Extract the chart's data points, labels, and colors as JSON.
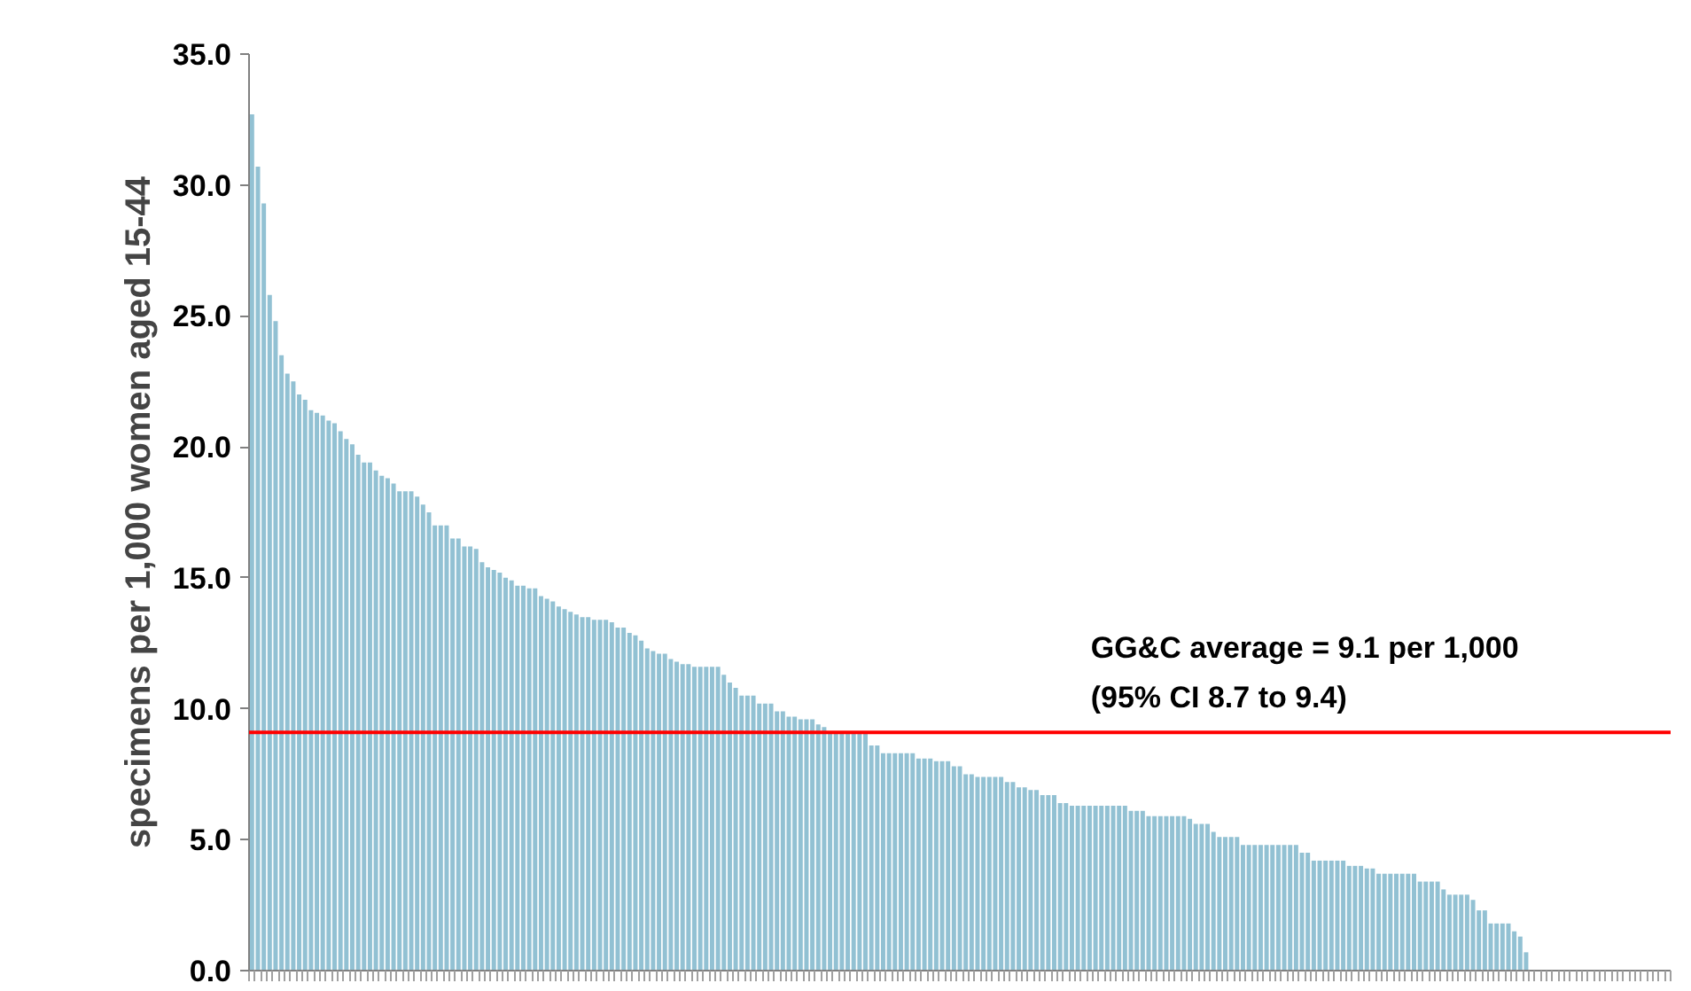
{
  "chart_data": {
    "type": "bar",
    "ylabel": "specimens per 1,000 women aged 15-44",
    "categories": [
      null,
      null,
      null,
      null,
      null,
      null,
      null,
      null,
      null,
      null,
      null,
      null,
      null,
      null,
      null,
      null,
      null,
      null,
      null,
      null,
      null,
      null,
      null,
      null,
      null,
      null,
      null,
      null,
      null,
      null,
      null,
      null,
      null,
      null,
      null,
      null,
      null,
      null,
      null,
      null,
      null,
      null,
      null,
      null,
      null,
      null,
      null,
      null,
      null,
      null,
      null,
      null,
      null,
      null,
      null,
      null,
      null,
      null,
      null,
      null,
      null,
      null,
      null,
      null,
      null,
      null,
      null,
      null,
      null,
      null,
      null,
      null,
      null,
      null,
      null,
      null,
      null,
      null,
      null,
      null,
      null,
      null,
      null,
      null,
      null,
      null,
      null,
      null,
      null,
      null,
      null,
      null,
      null,
      null,
      null,
      null,
      null,
      null,
      null,
      null,
      null,
      null,
      null,
      null,
      null,
      null,
      null,
      null,
      null,
      null,
      null,
      null,
      null,
      null,
      null,
      null,
      null,
      null,
      null,
      null,
      null,
      null,
      null,
      null,
      null,
      null,
      null,
      null,
      null,
      null,
      null,
      null,
      null,
      null,
      null,
      null,
      null,
      null,
      null,
      null,
      null,
      null,
      null,
      null,
      null,
      null,
      null,
      null,
      null,
      null,
      null,
      null,
      null,
      null,
      null,
      null,
      null,
      null,
      null,
      null,
      null,
      null,
      null,
      null,
      null,
      null,
      null,
      null,
      null,
      null,
      null,
      null,
      null,
      null,
      null,
      null,
      null,
      null,
      null,
      null,
      null,
      null,
      null,
      null,
      null,
      null,
      null,
      null,
      null,
      null,
      null,
      null,
      null,
      null,
      null,
      null,
      null,
      null,
      null,
      null,
      null,
      null,
      null,
      null,
      null,
      null,
      null,
      null,
      null,
      null,
      null,
      null,
      null,
      null,
      null,
      null,
      null,
      null,
      null,
      null,
      null,
      null,
      null,
      null,
      null,
      null,
      null,
      null,
      null,
      null,
      null,
      null,
      null,
      null,
      null,
      null,
      null,
      null,
      null,
      null,
      null
    ],
    "values": [
      32.7,
      30.7,
      29.3,
      25.8,
      24.8,
      23.5,
      22.8,
      22.5,
      22.0,
      21.8,
      21.4,
      21.3,
      21.2,
      21.0,
      20.9,
      20.6,
      20.3,
      20.1,
      19.7,
      19.4,
      19.4,
      19.1,
      18.9,
      18.8,
      18.6,
      18.3,
      18.3,
      18.3,
      18.1,
      17.8,
      17.5,
      17.0,
      17.0,
      17.0,
      16.5,
      16.5,
      16.2,
      16.2,
      16.1,
      15.6,
      15.4,
      15.3,
      15.2,
      15.0,
      14.9,
      14.7,
      14.7,
      14.6,
      14.6,
      14.3,
      14.2,
      14.1,
      13.9,
      13.8,
      13.7,
      13.6,
      13.5,
      13.5,
      13.4,
      13.4,
      13.4,
      13.3,
      13.1,
      13.1,
      12.9,
      12.8,
      12.6,
      12.3,
      12.2,
      12.1,
      12.1,
      11.9,
      11.8,
      11.7,
      11.7,
      11.6,
      11.6,
      11.6,
      11.6,
      11.6,
      11.3,
      11.0,
      10.8,
      10.5,
      10.5,
      10.5,
      10.2,
      10.2,
      10.2,
      9.9,
      9.9,
      9.7,
      9.7,
      9.6,
      9.6,
      9.6,
      9.4,
      9.3,
      9.1,
      9.1,
      9.1,
      9.1,
      9.1,
      9.1,
      9.1,
      8.6,
      8.6,
      8.3,
      8.3,
      8.3,
      8.3,
      8.3,
      8.3,
      8.1,
      8.1,
      8.1,
      8.0,
      8.0,
      8.0,
      7.8,
      7.8,
      7.5,
      7.5,
      7.4,
      7.4,
      7.4,
      7.4,
      7.4,
      7.2,
      7.2,
      7.0,
      7.0,
      6.9,
      6.9,
      6.7,
      6.7,
      6.7,
      6.4,
      6.4,
      6.3,
      6.3,
      6.3,
      6.3,
      6.3,
      6.3,
      6.3,
      6.3,
      6.3,
      6.3,
      6.1,
      6.1,
      6.1,
      5.9,
      5.9,
      5.9,
      5.9,
      5.9,
      5.9,
      5.9,
      5.8,
      5.6,
      5.6,
      5.6,
      5.3,
      5.1,
      5.1,
      5.1,
      5.1,
      4.8,
      4.8,
      4.8,
      4.8,
      4.8,
      4.8,
      4.8,
      4.8,
      4.8,
      4.8,
      4.5,
      4.5,
      4.2,
      4.2,
      4.2,
      4.2,
      4.2,
      4.2,
      4.0,
      4.0,
      4.0,
      3.9,
      3.9,
      3.7,
      3.7,
      3.7,
      3.7,
      3.7,
      3.7,
      3.7,
      3.4,
      3.4,
      3.4,
      3.4,
      3.1,
      2.9,
      2.9,
      2.9,
      2.9,
      2.7,
      2.3,
      2.3,
      1.8,
      1.8,
      1.8,
      1.8,
      1.5,
      1.3,
      0.7,
      null,
      null,
      null,
      null,
      null,
      null,
      null,
      null,
      null,
      null,
      null,
      null,
      null,
      null,
      null,
      null,
      null,
      null,
      null,
      null,
      null,
      null,
      null,
      null
    ],
    "color": "#92c1d3",
    "ylim": [
      0,
      35
    ],
    "yticks": [
      {
        "value": 0,
        "label": "0.0"
      },
      {
        "value": 5,
        "label": "5.0"
      },
      {
        "value": 10,
        "label": "10.0"
      },
      {
        "value": 15,
        "label": "15.0"
      },
      {
        "value": 20,
        "label": "20.0"
      },
      {
        "value": 25,
        "label": "25.0"
      },
      {
        "value": 30,
        "label": "30.0"
      },
      {
        "value": 35,
        "label": "35.0"
      }
    ],
    "ref_lines": [
      {
        "axis": "y",
        "value": 9.1,
        "label": "GG&C average = 9.1  per 1,000\n(95% CI 8.7 to 9.4)",
        "color": "#ff0000"
      }
    ],
    "tick_labels": "y",
    "grid": false
  }
}
